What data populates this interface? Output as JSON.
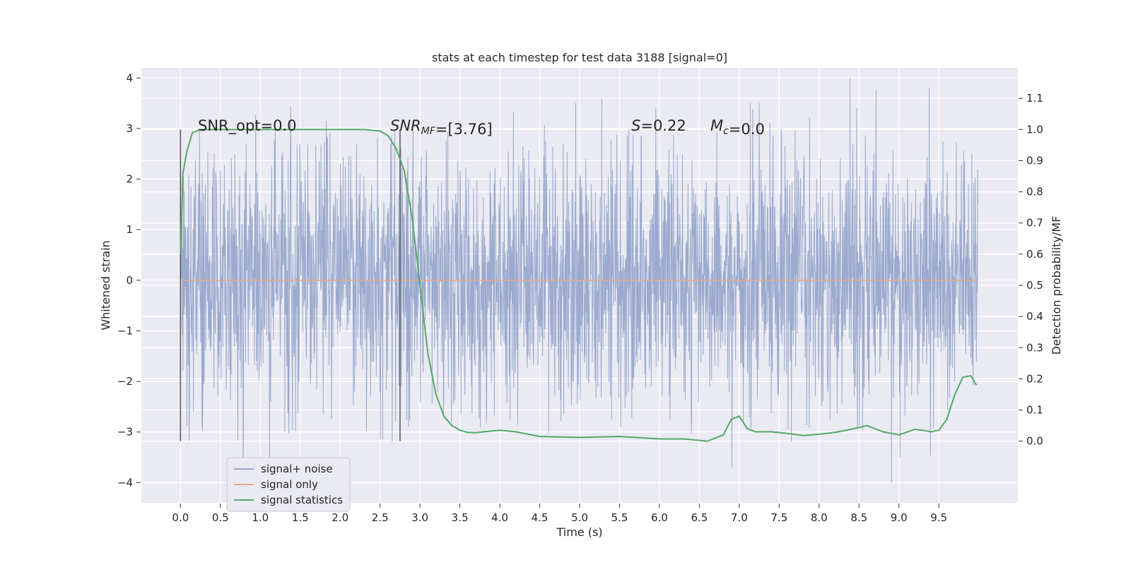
{
  "chart_data": {
    "type": "line",
    "title": "stats at each timestep for test data 3188 [signal=0]",
    "xlabel": "Time (s)",
    "ylabel": "Whitened strain",
    "y2label": "Detection probability/MF",
    "xlim": [
      -0.49,
      10.49
    ],
    "ylim": [
      -4.4,
      4.2
    ],
    "y2lim": [
      -0.198,
      1.198
    ],
    "xticks": [
      0.0,
      0.5,
      1.0,
      1.5,
      2.0,
      2.5,
      3.0,
      3.5,
      4.0,
      4.5,
      5.0,
      5.5,
      6.0,
      6.5,
      7.0,
      7.5,
      8.0,
      8.5,
      9.0,
      9.5
    ],
    "xtick_labels": [
      "0.0",
      "0.5",
      "1.0",
      "1.5",
      "2.0",
      "2.5",
      "3.0",
      "3.5",
      "4.0",
      "4.5",
      "5.0",
      "5.5",
      "6.0",
      "6.5",
      "7.0",
      "7.5",
      "8.0",
      "8.5",
      "9.0",
      "9.5"
    ],
    "yticks": [
      -4,
      -3,
      -2,
      -1,
      0,
      1,
      2,
      3,
      4
    ],
    "ytick_labels": [
      "−4",
      "−3",
      "−2",
      "−1",
      "0",
      "1",
      "2",
      "3",
      "4"
    ],
    "y2ticks": [
      0.0,
      0.1,
      0.2,
      0.3,
      0.4,
      0.5,
      0.6,
      0.7,
      0.8,
      0.9,
      1.0,
      1.1
    ],
    "y2tick_labels": [
      "0.0",
      "0.1",
      "0.2",
      "0.3",
      "0.4",
      "0.5",
      "0.6",
      "0.7",
      "0.8",
      "0.9",
      "1.0",
      "1.1"
    ],
    "grid": true,
    "legend_position": "lower-left",
    "series": [
      {
        "name": "signal+ noise",
        "axis": "left",
        "color": "#97a7cb",
        "x_range": [
          0.0,
          9.99
        ],
        "envelope": {
          "typical_band": [
            -1.2,
            1.2
          ],
          "extreme_peaks": [
            4.0,
            3.8,
            3.6,
            3.5,
            3.4,
            -4.0,
            -3.7,
            -3.6
          ]
        }
      },
      {
        "name": "signal only",
        "axis": "left",
        "color": "#e8a98c",
        "x": [
          0.0,
          9.99
        ],
        "y": [
          0.0,
          0.0
        ]
      },
      {
        "name": "signal statistics",
        "axis": "right",
        "color": "#55a868",
        "x": [
          0.0,
          0.03,
          0.08,
          0.15,
          0.25,
          0.5,
          1.0,
          1.5,
          2.0,
          2.3,
          2.5,
          2.6,
          2.7,
          2.8,
          2.9,
          3.0,
          3.1,
          3.2,
          3.3,
          3.4,
          3.5,
          3.6,
          3.7,
          3.8,
          4.0,
          4.2,
          4.5,
          5.0,
          5.5,
          6.0,
          6.3,
          6.6,
          6.8,
          6.9,
          7.0,
          7.1,
          7.2,
          7.4,
          7.6,
          7.8,
          8.0,
          8.2,
          8.4,
          8.6,
          8.8,
          9.0,
          9.2,
          9.3,
          9.4,
          9.5,
          9.6,
          9.7,
          9.8,
          9.9,
          9.97
        ],
        "y": [
          0.6,
          0.86,
          0.93,
          0.99,
          1.0,
          1.0,
          1.0,
          1.0,
          1.0,
          1.0,
          0.995,
          0.98,
          0.94,
          0.87,
          0.72,
          0.5,
          0.28,
          0.15,
          0.08,
          0.05,
          0.035,
          0.028,
          0.027,
          0.03,
          0.035,
          0.03,
          0.015,
          0.012,
          0.015,
          0.007,
          0.007,
          0.0,
          0.02,
          0.07,
          0.08,
          0.04,
          0.03,
          0.03,
          0.025,
          0.018,
          0.022,
          0.028,
          0.038,
          0.05,
          0.03,
          0.02,
          0.038,
          0.035,
          0.03,
          0.035,
          0.07,
          0.15,
          0.205,
          0.21,
          0.18
        ]
      }
    ],
    "vlines": [
      0.0,
      2.75
    ],
    "annotations": [
      {
        "parts": [
          {
            "t": "SNR_opt=0.0"
          }
        ]
      },
      {
        "parts": [
          {
            "t": "SNR",
            "i": true
          },
          {
            "t": "MF",
            "i": true,
            "sub": true
          },
          {
            "t": "=[3.76]"
          }
        ]
      },
      {
        "parts": [
          {
            "t": "S",
            "i": true
          },
          {
            "t": "=0.22"
          }
        ]
      },
      {
        "parts": [
          {
            "t": "M",
            "i": true
          },
          {
            "t": "c",
            "i": true,
            "sub": true
          },
          {
            "t": "=0.0"
          }
        ]
      }
    ]
  }
}
